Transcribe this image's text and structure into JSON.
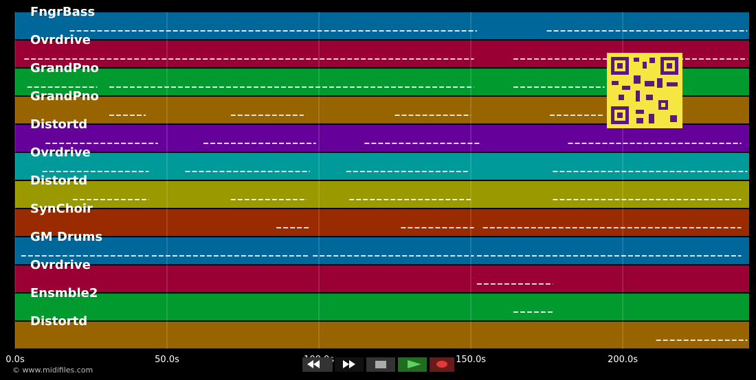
{
  "tracks": [
    {
      "name": "FngrBass",
      "color": "#00679a",
      "segments": [
        [
          18,
          152
        ],
        [
          175,
          241
        ]
      ]
    },
    {
      "name": "Ovrdrive",
      "color": "#9a0033",
      "segments": [
        [
          3,
          151
        ],
        [
          164,
          241
        ]
      ]
    },
    {
      "name": "GrandPno",
      "color": "#009a2f",
      "segments": [
        [
          4,
          27
        ],
        [
          31,
          151
        ],
        [
          164,
          194
        ]
      ]
    },
    {
      "name": "GrandPno",
      "color": "#986400",
      "segments": [
        [
          31,
          43
        ],
        [
          71,
          95
        ],
        [
          125,
          150
        ],
        [
          176,
          194
        ]
      ]
    },
    {
      "name": "Distortd",
      "color": "#66009a",
      "segments": [
        [
          10,
          47
        ],
        [
          62,
          99
        ],
        [
          115,
          153
        ],
        [
          182,
          239
        ]
      ]
    },
    {
      "name": "Ovrdrive",
      "color": "#009a9a",
      "segments": [
        [
          9,
          44
        ],
        [
          56,
          97
        ],
        [
          109,
          149
        ],
        [
          177,
          241
        ]
      ]
    },
    {
      "name": "Distortd",
      "color": "#9a9a00",
      "segments": [
        [
          19,
          44
        ],
        [
          71,
          96
        ],
        [
          110,
          150
        ],
        [
          177,
          239
        ]
      ]
    },
    {
      "name": "SynChoir",
      "color": "#9a2a00",
      "segments": [
        [
          86,
          97
        ],
        [
          127,
          151
        ],
        [
          154,
          239
        ]
      ]
    },
    {
      "name": "GM Drums",
      "color": "#00679a",
      "segments": [
        [
          2,
          44
        ],
        [
          45,
          97
        ],
        [
          98,
          151
        ],
        [
          152,
          239
        ]
      ]
    },
    {
      "name": "Ovrdrive",
      "color": "#9a0033",
      "segments": [
        [
          152,
          177
        ]
      ]
    },
    {
      "name": "Ensmble2",
      "color": "#009a2f",
      "segments": [
        [
          164,
          177
        ]
      ]
    },
    {
      "name": "Distortd",
      "color": "#986400",
      "segments": [
        [
          211,
          241
        ]
      ]
    }
  ],
  "time_axis": {
    "xlim": [
      0,
      241.6
    ],
    "xticks": [
      {
        "value": 0,
        "label": "0.0s"
      },
      {
        "value": 50,
        "label": "50.0s"
      },
      {
        "value": 100,
        "label": "100.0s"
      },
      {
        "value": 150,
        "label": "150.0s"
      },
      {
        "value": 200,
        "label": "200.0s"
      }
    ]
  },
  "copyright": "© www.midifiles.com"
}
